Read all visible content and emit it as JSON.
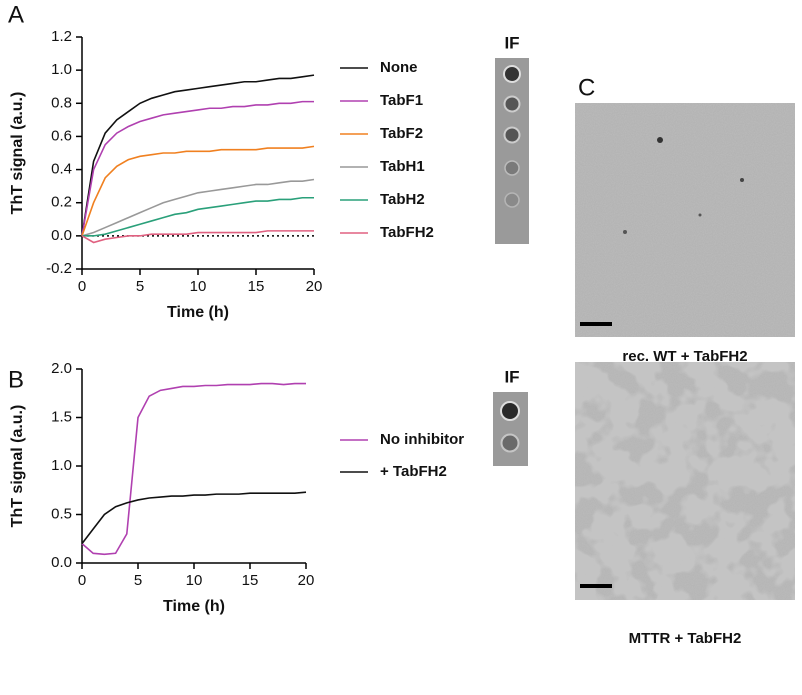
{
  "chart_data": [
    {
      "type": "line",
      "panel": "A",
      "inset_label": "IF",
      "y_label": "ThT signal (a.u.)",
      "x_label": "Time (h)",
      "x": [
        0,
        1,
        2,
        3,
        4,
        5,
        6,
        7,
        8,
        9,
        10,
        11,
        12,
        13,
        14,
        15,
        16,
        17,
        18,
        19,
        20
      ],
      "series": [
        {
          "name": "None",
          "color": "#111111",
          "values": [
            0,
            0.45,
            0.62,
            0.7,
            0.75,
            0.8,
            0.83,
            0.85,
            0.87,
            0.88,
            0.89,
            0.9,
            0.91,
            0.92,
            0.93,
            0.93,
            0.94,
            0.95,
            0.95,
            0.96,
            0.97
          ]
        },
        {
          "name": "TabF1",
          "color": "#b040b0",
          "values": [
            0,
            0.4,
            0.55,
            0.62,
            0.66,
            0.69,
            0.71,
            0.73,
            0.74,
            0.75,
            0.76,
            0.77,
            0.77,
            0.78,
            0.78,
            0.79,
            0.79,
            0.8,
            0.8,
            0.81,
            0.81
          ]
        },
        {
          "name": "TabF2",
          "color": "#f08020",
          "values": [
            0,
            0.2,
            0.35,
            0.42,
            0.46,
            0.48,
            0.49,
            0.5,
            0.5,
            0.51,
            0.51,
            0.51,
            0.52,
            0.52,
            0.52,
            0.52,
            0.53,
            0.53,
            0.53,
            0.53,
            0.54
          ]
        },
        {
          "name": "TabH1",
          "color": "#999999",
          "values": [
            0,
            0.02,
            0.05,
            0.08,
            0.11,
            0.14,
            0.17,
            0.2,
            0.22,
            0.24,
            0.26,
            0.27,
            0.28,
            0.29,
            0.3,
            0.31,
            0.31,
            0.32,
            0.33,
            0.33,
            0.34
          ]
        },
        {
          "name": "TabH2",
          "color": "#2aa07a",
          "values": [
            0,
            0,
            0.01,
            0.03,
            0.05,
            0.07,
            0.09,
            0.11,
            0.13,
            0.14,
            0.16,
            0.17,
            0.18,
            0.19,
            0.2,
            0.21,
            0.21,
            0.22,
            0.22,
            0.23,
            0.23
          ]
        },
        {
          "name": "TabFH2",
          "color": "#e06080",
          "values": [
            0,
            -0.04,
            -0.02,
            -0.01,
            0,
            0,
            0.01,
            0.01,
            0.01,
            0.01,
            0.02,
            0.02,
            0.02,
            0.02,
            0.02,
            0.02,
            0.03,
            0.03,
            0.03,
            0.03,
            0.03
          ]
        }
      ],
      "reference_line": 0,
      "xlim": [
        0,
        20
      ],
      "xticks": [
        0,
        5,
        10,
        15,
        20
      ],
      "ylim": [
        -0.2,
        1.2
      ],
      "yticks": [
        -0.2,
        {
          "value": 0,
          "label": "0.0"
        },
        0.2,
        0.4,
        0.6,
        0.8,
        {
          "value": 1,
          "label": "1.0"
        },
        1.2
      ]
    },
    {
      "type": "line",
      "panel": "B",
      "inset_label": "IF",
      "y_label": "ThT signal (a.u.)",
      "x_label": "Time (h)",
      "x": [
        0,
        1,
        2,
        3,
        4,
        5,
        6,
        7,
        8,
        9,
        10,
        11,
        12,
        13,
        14,
        15,
        16,
        17,
        18,
        19,
        20
      ],
      "series": [
        {
          "name": "No inhibitor",
          "color": "#b040b0",
          "values": [
            0.2,
            0.1,
            0.09,
            0.1,
            0.3,
            1.5,
            1.72,
            1.78,
            1.8,
            1.82,
            1.82,
            1.83,
            1.83,
            1.84,
            1.84,
            1.84,
            1.85,
            1.85,
            1.84,
            1.85,
            1.85
          ]
        },
        {
          "name": "+ TabFH2",
          "color": "#111111",
          "values": [
            0.2,
            0.35,
            0.5,
            0.58,
            0.62,
            0.65,
            0.67,
            0.68,
            0.69,
            0.69,
            0.7,
            0.7,
            0.71,
            0.71,
            0.71,
            0.72,
            0.72,
            0.72,
            0.72,
            0.72,
            0.73
          ]
        }
      ],
      "xlim": [
        0,
        20
      ],
      "xticks": [
        0,
        5,
        10,
        15,
        20
      ],
      "ylim": [
        0,
        2
      ],
      "yticks": [
        {
          "value": 0,
          "label": "0.0"
        },
        0.5,
        {
          "value": 1,
          "label": "1.0"
        },
        1.5,
        {
          "value": 2,
          "label": "2.0"
        }
      ]
    }
  ],
  "panel_c": {
    "label": "C",
    "captions": [
      "rec. WT + TabFH2",
      "MTTR + TabFH2"
    ]
  }
}
